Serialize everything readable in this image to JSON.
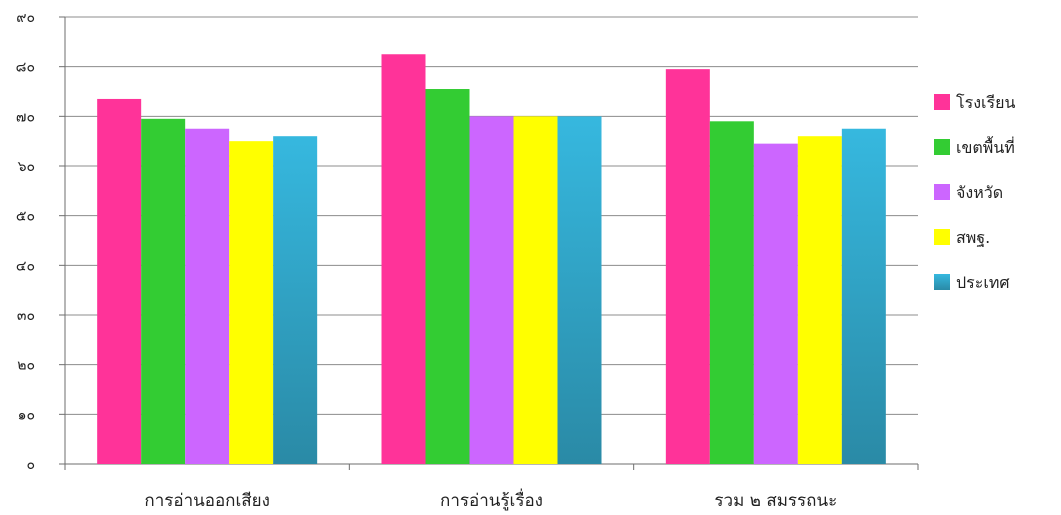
{
  "chart_data": {
    "type": "bar",
    "categories": [
      "การอ่านออกเสียง",
      "การอ่านรู้เรื่อง",
      "รวม ๒ สมรรถนะ"
    ],
    "series": [
      {
        "name": "โรงเรียน",
        "color": "#ff3399",
        "values": [
          73.5,
          82.5,
          79.5
        ]
      },
      {
        "name": "เขตพื้นที่",
        "color": "#33cc33",
        "values": [
          69.5,
          75.5,
          69
        ]
      },
      {
        "name": "จังหวัด",
        "color": "#cc66ff",
        "values": [
          67.5,
          70,
          64.5
        ]
      },
      {
        "name": "สพฐ.",
        "color": "#ffff00",
        "values": [
          65,
          70,
          66
        ]
      },
      {
        "name": "ประเทศ",
        "color": "#33b3d9",
        "values": [
          66,
          70,
          67.5
        ]
      }
    ],
    "ylim": [
      0,
      90
    ],
    "yticks": [
      {
        "value": 0,
        "label": "๐"
      },
      {
        "value": 10,
        "label": "๑๐"
      },
      {
        "value": 20,
        "label": "๒๐"
      },
      {
        "value": 30,
        "label": "๓๐"
      },
      {
        "value": 40,
        "label": "๔๐"
      },
      {
        "value": 50,
        "label": "๕๐"
      },
      {
        "value": 60,
        "label": "๖๐"
      },
      {
        "value": 70,
        "label": "๗๐"
      },
      {
        "value": 80,
        "label": "๘๐"
      },
      {
        "value": 90,
        "label": "๙๐"
      }
    ],
    "grid": true,
    "legend_position": "right"
  }
}
